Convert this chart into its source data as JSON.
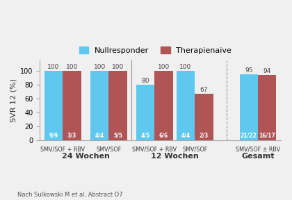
{
  "groups": [
    {
      "nullresp": 100,
      "therapie": 100,
      "nullresp_frac": "9/9",
      "therapie_frac": "3/3",
      "xlabel": "SMV/SOF + RBV"
    },
    {
      "nullresp": 100,
      "therapie": 100,
      "nullresp_frac": "4/4",
      "therapie_frac": "5/5",
      "xlabel": "SMV/SOF"
    },
    {
      "nullresp": 80,
      "therapie": 100,
      "nullresp_frac": "4/5",
      "therapie_frac": "6/6",
      "xlabel": "SMV/SOF + RBV"
    },
    {
      "nullresp": 100,
      "therapie": 67,
      "nullresp_frac": "4/4",
      "therapie_frac": "2/3",
      "xlabel": "SMV/SOF"
    },
    {
      "nullresp": 95,
      "therapie": 94,
      "nullresp_frac": "21/22",
      "therapie_frac": "16/17",
      "xlabel": "SMV/SOF ± RBV"
    }
  ],
  "section_labels": [
    "24 Wochen",
    "12 Wochen",
    "Gesamt"
  ],
  "section_centers": [
    0.8,
    2.35,
    3.8
  ],
  "positions": [
    0.4,
    1.2,
    2.0,
    2.7,
    3.8
  ],
  "color_null": "#5ec8ef",
  "color_therapie": "#b05555",
  "ylabel": "SVR 12 (%)",
  "legend_null": "Nullresponder",
  "legend_therapie": "Therapienaive",
  "footnote": "Nach Sulkowski M et al, Abstract O7",
  "bar_width": 0.32,
  "bg_color": "#f0f0f0",
  "vline_color": "#999999",
  "vline_between_24_12": 1.6,
  "vline_gesamt": 3.25
}
